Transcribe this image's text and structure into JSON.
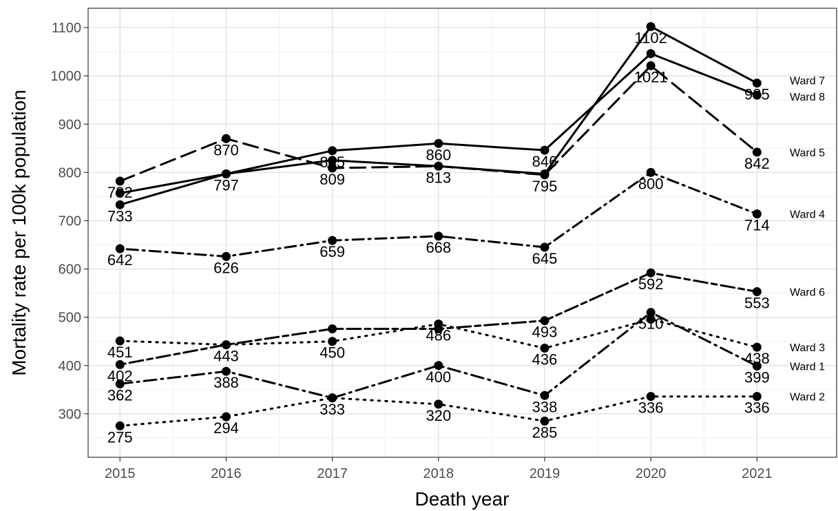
{
  "chart_data": {
    "type": "line",
    "xlabel": "Death year",
    "ylabel": "Mortality rate per 100k population",
    "x": [
      2015,
      2016,
      2017,
      2018,
      2019,
      2020,
      2021
    ],
    "xlim": [
      2014.7,
      2021.75
    ],
    "ylim": [
      210,
      1140
    ],
    "yticks": [
      300,
      400,
      500,
      600,
      700,
      800,
      900,
      1000,
      1100
    ],
    "grid": true,
    "series": [
      {
        "name": "Ward 7",
        "line_style": "solid",
        "values": [
          757,
          797,
          825,
          813,
          797,
          1102,
          985
        ],
        "labels": [
          "",
          "",
          "",
          "",
          "",
          "1102",
          "985"
        ]
      },
      {
        "name": "Ward 8",
        "line_style": "solid",
        "values": [
          733,
          797,
          845,
          860,
          846,
          1046,
          960
        ],
        "labels": [
          "733",
          "797",
          "845",
          "860",
          "846",
          "",
          ""
        ]
      },
      {
        "name": "Ward 5",
        "line_style": "longdash",
        "values": [
          782,
          870,
          809,
          813,
          795,
          1021,
          842
        ],
        "labels": [
          "782",
          "870",
          "809",
          "813",
          "795",
          "1021",
          "842"
        ]
      },
      {
        "name": "Ward 4",
        "line_style": "dotdash",
        "values": [
          642,
          626,
          659,
          668,
          645,
          800,
          714
        ],
        "labels": [
          "642",
          "626",
          "659",
          "668",
          "645",
          "800",
          "714"
        ]
      },
      {
        "name": "Ward 6",
        "line_style": "twodash",
        "values": [
          402,
          443,
          476,
          476,
          493,
          592,
          553
        ],
        "labels": [
          "402",
          "443",
          "",
          "",
          "493",
          "592",
          "553"
        ]
      },
      {
        "name": "Ward 3",
        "line_style": "dotted",
        "values": [
          451,
          443,
          450,
          486,
          436,
          496,
          438
        ],
        "labels": [
          "451",
          "",
          "450",
          "486",
          "436",
          "",
          "438"
        ]
      },
      {
        "name": "Ward 1",
        "line_style": "dashdot",
        "values": [
          362,
          388,
          333,
          400,
          338,
          510,
          399
        ],
        "labels": [
          "362",
          "388",
          "333",
          "400",
          "338",
          "510",
          "399"
        ]
      },
      {
        "name": "Ward 2",
        "line_style": "dotted",
        "values": [
          275,
          294,
          333,
          320,
          285,
          336,
          336
        ],
        "labels": [
          "275",
          "294",
          "",
          "320",
          "285",
          "336",
          "336"
        ]
      }
    ]
  }
}
